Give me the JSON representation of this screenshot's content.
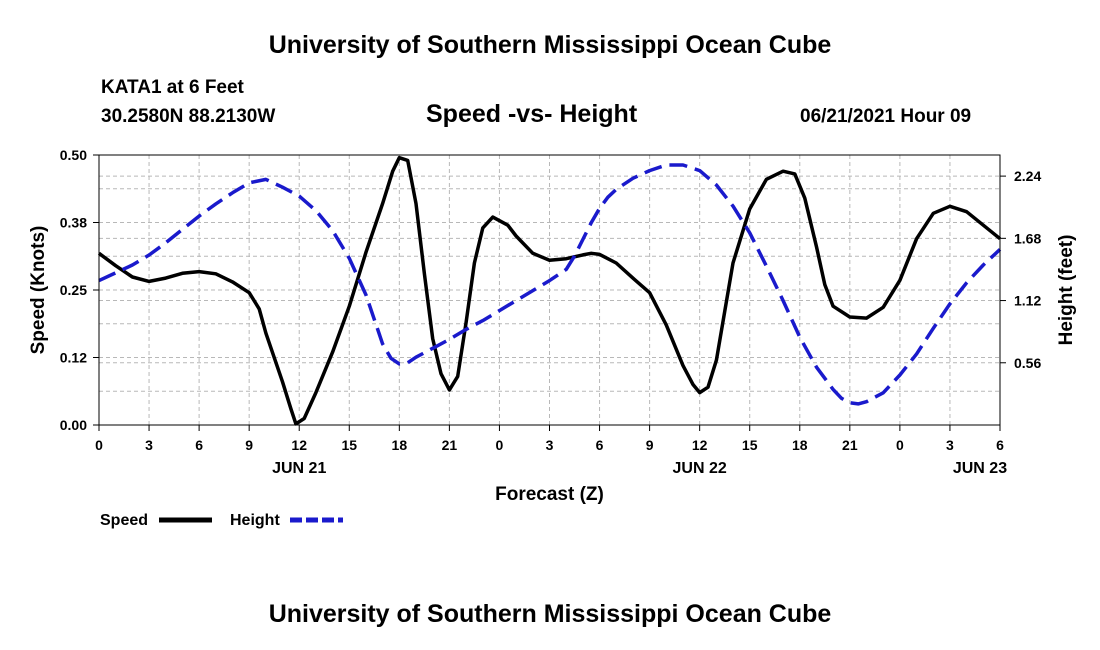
{
  "header": {
    "title": "University of Southern Mississippi Ocean Cube",
    "station": "KATA1 at 6 Feet",
    "coords": "30.2580N  88.2130W",
    "subtitle": "Speed -vs- Height",
    "datetime": "06/21/2021 Hour 09"
  },
  "footer": {
    "title": "University of Southern Mississippi Ocean Cube"
  },
  "chart_data": {
    "type": "line",
    "xlabel": "Forecast (Z)",
    "ylabel": "Speed (Knots)",
    "y2label": "Height (feet)",
    "xlim": [
      0,
      54
    ],
    "ylim": [
      0,
      0.5
    ],
    "y2lim": [
      0.0,
      2.43
    ],
    "grid": true,
    "x_ticks": [
      0,
      3,
      6,
      9,
      12,
      15,
      18,
      21,
      24,
      27,
      30,
      33,
      36,
      39,
      42,
      45,
      48,
      51,
      54
    ],
    "x_tick_labels": [
      "0",
      "3",
      "6",
      "9",
      "12",
      "15",
      "18",
      "21",
      "0",
      "3",
      "6",
      "9",
      "12",
      "15",
      "18",
      "21",
      "0",
      "3",
      "6"
    ],
    "y_ticks": [
      0.0,
      0.125,
      0.25,
      0.375,
      0.5
    ],
    "y_tick_labels": [
      "0.00",
      "0.12",
      "0.25",
      "0.38",
      "0.50"
    ],
    "y2_ticks": [
      0.56,
      1.12,
      1.68,
      2.24
    ],
    "y2_tick_labels": [
      "0.56",
      "1.12",
      "1.68",
      "2.24"
    ],
    "date_labels": [
      {
        "x": 12,
        "label": "JUN 21"
      },
      {
        "x": 36,
        "label": "JUN 22"
      },
      {
        "x": 52.8,
        "label": "JUN 23"
      }
    ],
    "legend": {
      "position": "bottom-left",
      "items": [
        {
          "name": "Speed",
          "color": "#000000",
          "style": "solid"
        },
        {
          "name": "Height",
          "color": "#1a1acc",
          "style": "dashed"
        }
      ]
    },
    "series": [
      {
        "name": "Speed",
        "axis": "left",
        "color": "#000000",
        "style": "solid",
        "points": [
          [
            0,
            0.318
          ],
          [
            1,
            0.295
          ],
          [
            2,
            0.274
          ],
          [
            3,
            0.266
          ],
          [
            4,
            0.272
          ],
          [
            5,
            0.281
          ],
          [
            6,
            0.284
          ],
          [
            7,
            0.28
          ],
          [
            8,
            0.265
          ],
          [
            9,
            0.245
          ],
          [
            9.6,
            0.215
          ],
          [
            10,
            0.17
          ],
          [
            11,
            0.08
          ],
          [
            11.5,
            0.03
          ],
          [
            11.8,
            0.002
          ],
          [
            12.3,
            0.012
          ],
          [
            13,
            0.06
          ],
          [
            14,
            0.135
          ],
          [
            15,
            0.22
          ],
          [
            16,
            0.32
          ],
          [
            17,
            0.41
          ],
          [
            17.6,
            0.47
          ],
          [
            18,
            0.495
          ],
          [
            18.5,
            0.49
          ],
          [
            19,
            0.41
          ],
          [
            19.5,
            0.28
          ],
          [
            20,
            0.16
          ],
          [
            20.5,
            0.095
          ],
          [
            21,
            0.065
          ],
          [
            21.5,
            0.09
          ],
          [
            22,
            0.19
          ],
          [
            22.5,
            0.3
          ],
          [
            23,
            0.365
          ],
          [
            23.6,
            0.385
          ],
          [
            24.5,
            0.37
          ],
          [
            25,
            0.35
          ],
          [
            26,
            0.318
          ],
          [
            27,
            0.305
          ],
          [
            28,
            0.308
          ],
          [
            29,
            0.315
          ],
          [
            29.5,
            0.318
          ],
          [
            30,
            0.316
          ],
          [
            31,
            0.3
          ],
          [
            32,
            0.272
          ],
          [
            33,
            0.245
          ],
          [
            34,
            0.185
          ],
          [
            35,
            0.11
          ],
          [
            35.6,
            0.075
          ],
          [
            36,
            0.06
          ],
          [
            36.5,
            0.07
          ],
          [
            37,
            0.12
          ],
          [
            37.5,
            0.21
          ],
          [
            38,
            0.3
          ],
          [
            39,
            0.4
          ],
          [
            40,
            0.455
          ],
          [
            41,
            0.47
          ],
          [
            41.7,
            0.465
          ],
          [
            42.3,
            0.42
          ],
          [
            43,
            0.33
          ],
          [
            43.5,
            0.26
          ],
          [
            44,
            0.22
          ],
          [
            45,
            0.2
          ],
          [
            46,
            0.198
          ],
          [
            47,
            0.218
          ],
          [
            48,
            0.268
          ],
          [
            49,
            0.345
          ],
          [
            50,
            0.392
          ],
          [
            51,
            0.405
          ],
          [
            52,
            0.395
          ],
          [
            53,
            0.37
          ],
          [
            54,
            0.345
          ]
        ]
      },
      {
        "name": "Height",
        "axis": "right",
        "color": "#1a1acc",
        "style": "dashed",
        "points": [
          [
            0,
            1.3
          ],
          [
            1,
            1.37
          ],
          [
            2,
            1.44
          ],
          [
            3,
            1.53
          ],
          [
            4,
            1.64
          ],
          [
            5,
            1.76
          ],
          [
            6,
            1.88
          ],
          [
            7,
            1.99
          ],
          [
            8,
            2.09
          ],
          [
            9,
            2.18
          ],
          [
            10,
            2.21
          ],
          [
            11,
            2.14
          ],
          [
            12,
            2.06
          ],
          [
            13,
            1.93
          ],
          [
            14,
            1.75
          ],
          [
            15,
            1.5
          ],
          [
            16,
            1.17
          ],
          [
            16.5,
            0.95
          ],
          [
            17,
            0.73
          ],
          [
            17.5,
            0.6
          ],
          [
            18,
            0.55
          ],
          [
            18.5,
            0.56
          ],
          [
            19,
            0.61
          ],
          [
            20,
            0.69
          ],
          [
            21,
            0.77
          ],
          [
            22,
            0.86
          ],
          [
            23,
            0.94
          ],
          [
            24,
            1.03
          ],
          [
            25,
            1.12
          ],
          [
            26,
            1.21
          ],
          [
            27,
            1.3
          ],
          [
            28,
            1.4
          ],
          [
            28.5,
            1.52
          ],
          [
            29,
            1.67
          ],
          [
            29.5,
            1.82
          ],
          [
            30,
            1.95
          ],
          [
            30.5,
            2.05
          ],
          [
            31,
            2.12
          ],
          [
            32,
            2.22
          ],
          [
            33,
            2.29
          ],
          [
            34,
            2.34
          ],
          [
            35,
            2.34
          ],
          [
            36,
            2.29
          ],
          [
            37,
            2.16
          ],
          [
            38,
            1.97
          ],
          [
            39,
            1.73
          ],
          [
            40,
            1.43
          ],
          [
            41,
            1.12
          ],
          [
            42,
            0.79
          ],
          [
            43,
            0.52
          ],
          [
            44,
            0.32
          ],
          [
            44.5,
            0.24
          ],
          [
            45,
            0.2
          ],
          [
            45.5,
            0.19
          ],
          [
            46,
            0.21
          ],
          [
            47,
            0.29
          ],
          [
            48,
            0.45
          ],
          [
            49,
            0.64
          ],
          [
            50,
            0.87
          ],
          [
            51,
            1.09
          ],
          [
            52,
            1.28
          ],
          [
            53,
            1.44
          ],
          [
            54,
            1.58
          ]
        ]
      }
    ]
  }
}
